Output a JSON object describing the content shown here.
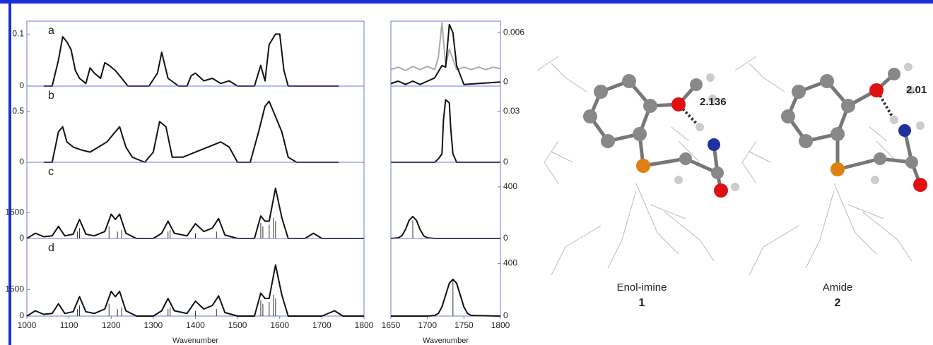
{
  "chart_data": [
    {
      "type": "line",
      "label": "a",
      "xlim": [
        1000,
        1800
      ],
      "ylim": [
        0,
        0.125
      ],
      "yticks": [
        0,
        0.1
      ],
      "series": [
        {
          "color": "#111111",
          "x": [
            1040,
            1060,
            1075,
            1085,
            1095,
            1105,
            1115,
            1125,
            1140,
            1150,
            1160,
            1175,
            1185,
            1195,
            1210,
            1225,
            1240,
            1260,
            1290,
            1310,
            1320,
            1335,
            1360,
            1380,
            1390,
            1400,
            1420,
            1440,
            1460,
            1480,
            1500,
            1520,
            1540,
            1555,
            1565,
            1575,
            1590,
            1600,
            1610,
            1620,
            1640,
            1700,
            1740
          ],
          "values": [
            0,
            0,
            0.05,
            0.095,
            0.085,
            0.07,
            0.03,
            0.015,
            0.005,
            0.035,
            0.025,
            0.015,
            0.045,
            0.04,
            0.03,
            0.015,
            0,
            0,
            0,
            0.025,
            0.065,
            0.015,
            0,
            0,
            0.02,
            0.025,
            0.01,
            0.015,
            0.005,
            0.01,
            0,
            0,
            0,
            0.04,
            0.01,
            0.08,
            0.1,
            0.1,
            0.03,
            0,
            0,
            0,
            0
          ]
        }
      ]
    },
    {
      "type": "line",
      "label": "b",
      "xlim": [
        1000,
        1800
      ],
      "ylim": [
        0,
        0.75
      ],
      "yticks": [
        0,
        0.5
      ],
      "series": [
        {
          "color": "#111111",
          "x": [
            1040,
            1060,
            1075,
            1085,
            1095,
            1110,
            1130,
            1150,
            1170,
            1190,
            1210,
            1220,
            1235,
            1250,
            1280,
            1300,
            1315,
            1330,
            1345,
            1370,
            1400,
            1430,
            1460,
            1480,
            1500,
            1530,
            1550,
            1565,
            1575,
            1590,
            1605,
            1620,
            1640,
            1700,
            1740
          ],
          "values": [
            0,
            0,
            0.3,
            0.35,
            0.2,
            0.15,
            0.12,
            0.1,
            0.15,
            0.2,
            0.3,
            0.35,
            0.15,
            0.05,
            0,
            0.1,
            0.4,
            0.35,
            0.05,
            0.05,
            0.1,
            0.15,
            0.2,
            0.15,
            0,
            0,
            0.3,
            0.55,
            0.6,
            0.45,
            0.3,
            0.05,
            0,
            0,
            0
          ]
        }
      ]
    },
    {
      "type": "line",
      "label": "c",
      "xlim": [
        1000,
        1800
      ],
      "ylim": [
        0,
        4400
      ],
      "yticks": [
        0,
        1500
      ],
      "series": [
        {
          "color": "#111111",
          "x": [
            1000,
            1010,
            1020,
            1040,
            1060,
            1075,
            1090,
            1110,
            1125,
            1140,
            1160,
            1185,
            1200,
            1210,
            1220,
            1235,
            1260,
            1300,
            1320,
            1335,
            1350,
            1380,
            1400,
            1420,
            1440,
            1455,
            1470,
            1500,
            1540,
            1555,
            1565,
            1575,
            1590,
            1605,
            1620,
            1660,
            1680,
            1700,
            1800
          ],
          "values": [
            0,
            150,
            300,
            100,
            150,
            700,
            150,
            250,
            1100,
            250,
            150,
            400,
            1400,
            1100,
            1400,
            300,
            0,
            0,
            300,
            1000,
            300,
            150,
            850,
            400,
            600,
            1150,
            200,
            0,
            0,
            1300,
            1000,
            1000,
            2900,
            1200,
            0,
            0,
            300,
            0,
            0
          ]
        }
      ],
      "sticks": {
        "x": [
          1120,
          1125,
          1195,
          1215,
          1225,
          1335,
          1340,
          1400,
          1450,
          1555,
          1560,
          1575,
          1585,
          1590
        ],
        "values": [
          400,
          600,
          700,
          400,
          500,
          400,
          500,
          300,
          400,
          900,
          700,
          800,
          1200,
          1000
        ]
      }
    },
    {
      "type": "line",
      "label": "d",
      "xlim": [
        1000,
        1800
      ],
      "ylim": [
        0,
        4400
      ],
      "yticks": [
        0,
        1500
      ],
      "xticks": [
        1000,
        1100,
        1200,
        1300,
        1400,
        1500,
        1600,
        1700,
        1800
      ],
      "x_label": "Wavenumber",
      "series": [
        {
          "color": "#111111",
          "x": [
            1000,
            1010,
            1020,
            1040,
            1060,
            1075,
            1090,
            1110,
            1125,
            1140,
            1160,
            1185,
            1200,
            1210,
            1220,
            1235,
            1260,
            1300,
            1320,
            1335,
            1350,
            1380,
            1400,
            1420,
            1440,
            1455,
            1470,
            1500,
            1540,
            1555,
            1565,
            1575,
            1590,
            1605,
            1620,
            1700,
            1730,
            1750,
            1800
          ],
          "values": [
            0,
            150,
            300,
            100,
            150,
            700,
            150,
            250,
            1100,
            250,
            150,
            400,
            1400,
            1100,
            1400,
            300,
            0,
            0,
            300,
            1000,
            300,
            150,
            850,
            400,
            600,
            1150,
            200,
            0,
            0,
            1300,
            1000,
            1000,
            2900,
            1200,
            0,
            0,
            300,
            0,
            0
          ]
        }
      ],
      "sticks": {
        "x": [
          1120,
          1125,
          1195,
          1215,
          1225,
          1335,
          1340,
          1400,
          1450,
          1555,
          1560,
          1575,
          1585,
          1590
        ],
        "values": [
          400,
          600,
          700,
          400,
          500,
          400,
          500,
          300,
          400,
          900,
          700,
          800,
          1200,
          1000
        ]
      }
    },
    {
      "type": "line",
      "xlim": [
        1650,
        1800
      ],
      "ylim": [
        -0.0005,
        0.0074
      ],
      "yticks": [
        0,
        0.006
      ],
      "series": [
        {
          "color": "#aaaaaa",
          "x": [
            1650,
            1660,
            1670,
            1680,
            1690,
            1700,
            1710,
            1715,
            1720,
            1725,
            1730,
            1740,
            1750,
            1760,
            1770,
            1780,
            1790,
            1800
          ],
          "values": [
            0.0015,
            0.0018,
            0.0014,
            0.0019,
            0.0015,
            0.0019,
            0.0015,
            0.003,
            0.0072,
            0.002,
            0.004,
            0.0015,
            0.0018,
            0.0015,
            0.0018,
            0.0015,
            0.0018,
            0.0016
          ]
        },
        {
          "color": "#111111",
          "x": [
            1650,
            1660,
            1670,
            1680,
            1690,
            1700,
            1710,
            1720,
            1725,
            1730,
            1735,
            1740,
            1750,
            1800
          ],
          "values": [
            -0.0002,
            0.0001,
            -0.0003,
            0.0001,
            -0.0003,
            0.0001,
            0.0005,
            0.002,
            0.0018,
            0.007,
            0.006,
            0.002,
            -0.0003,
            0
          ]
        }
      ]
    },
    {
      "type": "line",
      "xlim": [
        1650,
        1800
      ],
      "ylim": [
        0,
        0.045
      ],
      "yticks": [
        0,
        0.03
      ],
      "series": [
        {
          "color": "#111111",
          "x": [
            1650,
            1710,
            1715,
            1720,
            1722,
            1725,
            1730,
            1732,
            1735,
            1740,
            1800
          ],
          "values": [
            0,
            0,
            0.002,
            0.005,
            0.025,
            0.037,
            0.035,
            0.02,
            0.005,
            0,
            0
          ]
        }
      ]
    },
    {
      "type": "line",
      "xlim": [
        1650,
        1800
      ],
      "ylim": [
        0,
        590
      ],
      "yticks": [
        0,
        400
      ],
      "series": [
        {
          "color": "#111111",
          "x": [
            1650,
            1660,
            1665,
            1670,
            1675,
            1680,
            1685,
            1690,
            1695,
            1700,
            1710,
            1800
          ],
          "values": [
            0,
            5,
            20,
            70,
            140,
            170,
            140,
            70,
            20,
            5,
            0,
            0
          ]
        }
      ],
      "sticks": {
        "x": [
          1680
        ],
        "values": [
          140
        ]
      }
    },
    {
      "type": "line",
      "xlim": [
        1650,
        1800
      ],
      "ylim": [
        0,
        590
      ],
      "yticks": [
        0,
        400
      ],
      "xticks": [
        1650,
        1700,
        1750,
        1800
      ],
      "x_label": "Wavenumber",
      "series": [
        {
          "color": "#111111",
          "x": [
            1650,
            1700,
            1710,
            1715,
            1720,
            1725,
            1730,
            1735,
            1740,
            1745,
            1750,
            1755,
            1760,
            1800
          ],
          "values": [
            0,
            0,
            5,
            20,
            70,
            160,
            250,
            280,
            250,
            160,
            70,
            20,
            5,
            0
          ]
        }
      ],
      "sticks": {
        "x": [
          1735
        ],
        "values": [
          280
        ]
      }
    }
  ],
  "molecules": [
    {
      "name": "Enol-imine",
      "number": "1",
      "distance": "2.136"
    },
    {
      "name": "Amide",
      "number": "2",
      "distance": "2.01"
    }
  ]
}
